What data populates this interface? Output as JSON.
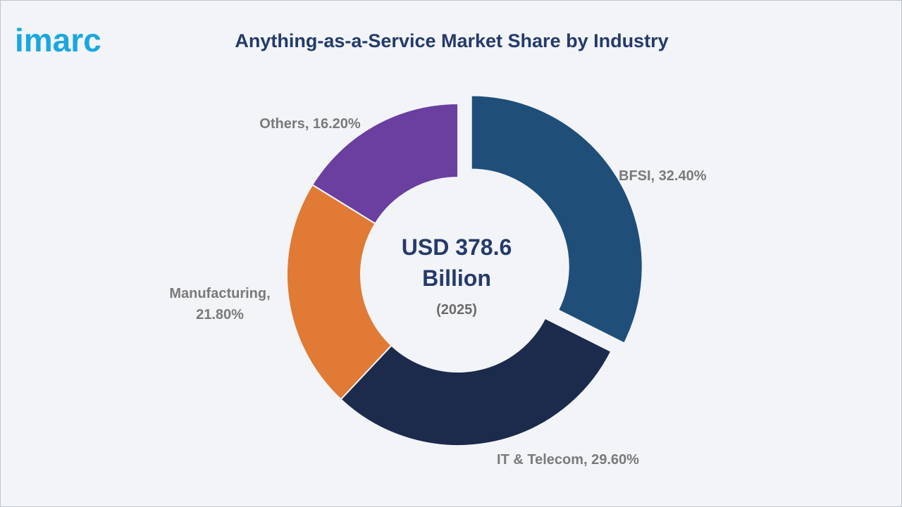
{
  "brand": {
    "logo_text": "imarc",
    "color": "#1aa7df"
  },
  "header": {
    "title": "Anything-as-a-Service Market Share by Industry"
  },
  "center": {
    "value_line": "USD 378.6",
    "unit_line": "Billion",
    "year": "(2025)"
  },
  "chart_data": {
    "type": "pie",
    "style": "donut",
    "title": "Anything-as-a-Service Market Share by Industry",
    "series": [
      {
        "name": "BFSI",
        "value": 32.4,
        "label_lines": [
          "BFSI, 32.40%"
        ],
        "color": "#1f4e79",
        "exploded": true
      },
      {
        "name": "IT & Telecom",
        "value": 29.6,
        "label_lines": [
          "IT & Telecom, 29.60%"
        ],
        "color": "#1c2a4b",
        "exploded": false
      },
      {
        "name": "Manufacturing",
        "value": 21.8,
        "label_lines": [
          "Manufacturing,",
          "21.80%"
        ],
        "color": "#e07a34",
        "exploded": false
      },
      {
        "name": "Others",
        "value": 16.2,
        "label_lines": [
          "Others, 16.20%"
        ],
        "color": "#6a3fa0",
        "exploded": false
      }
    ]
  }
}
